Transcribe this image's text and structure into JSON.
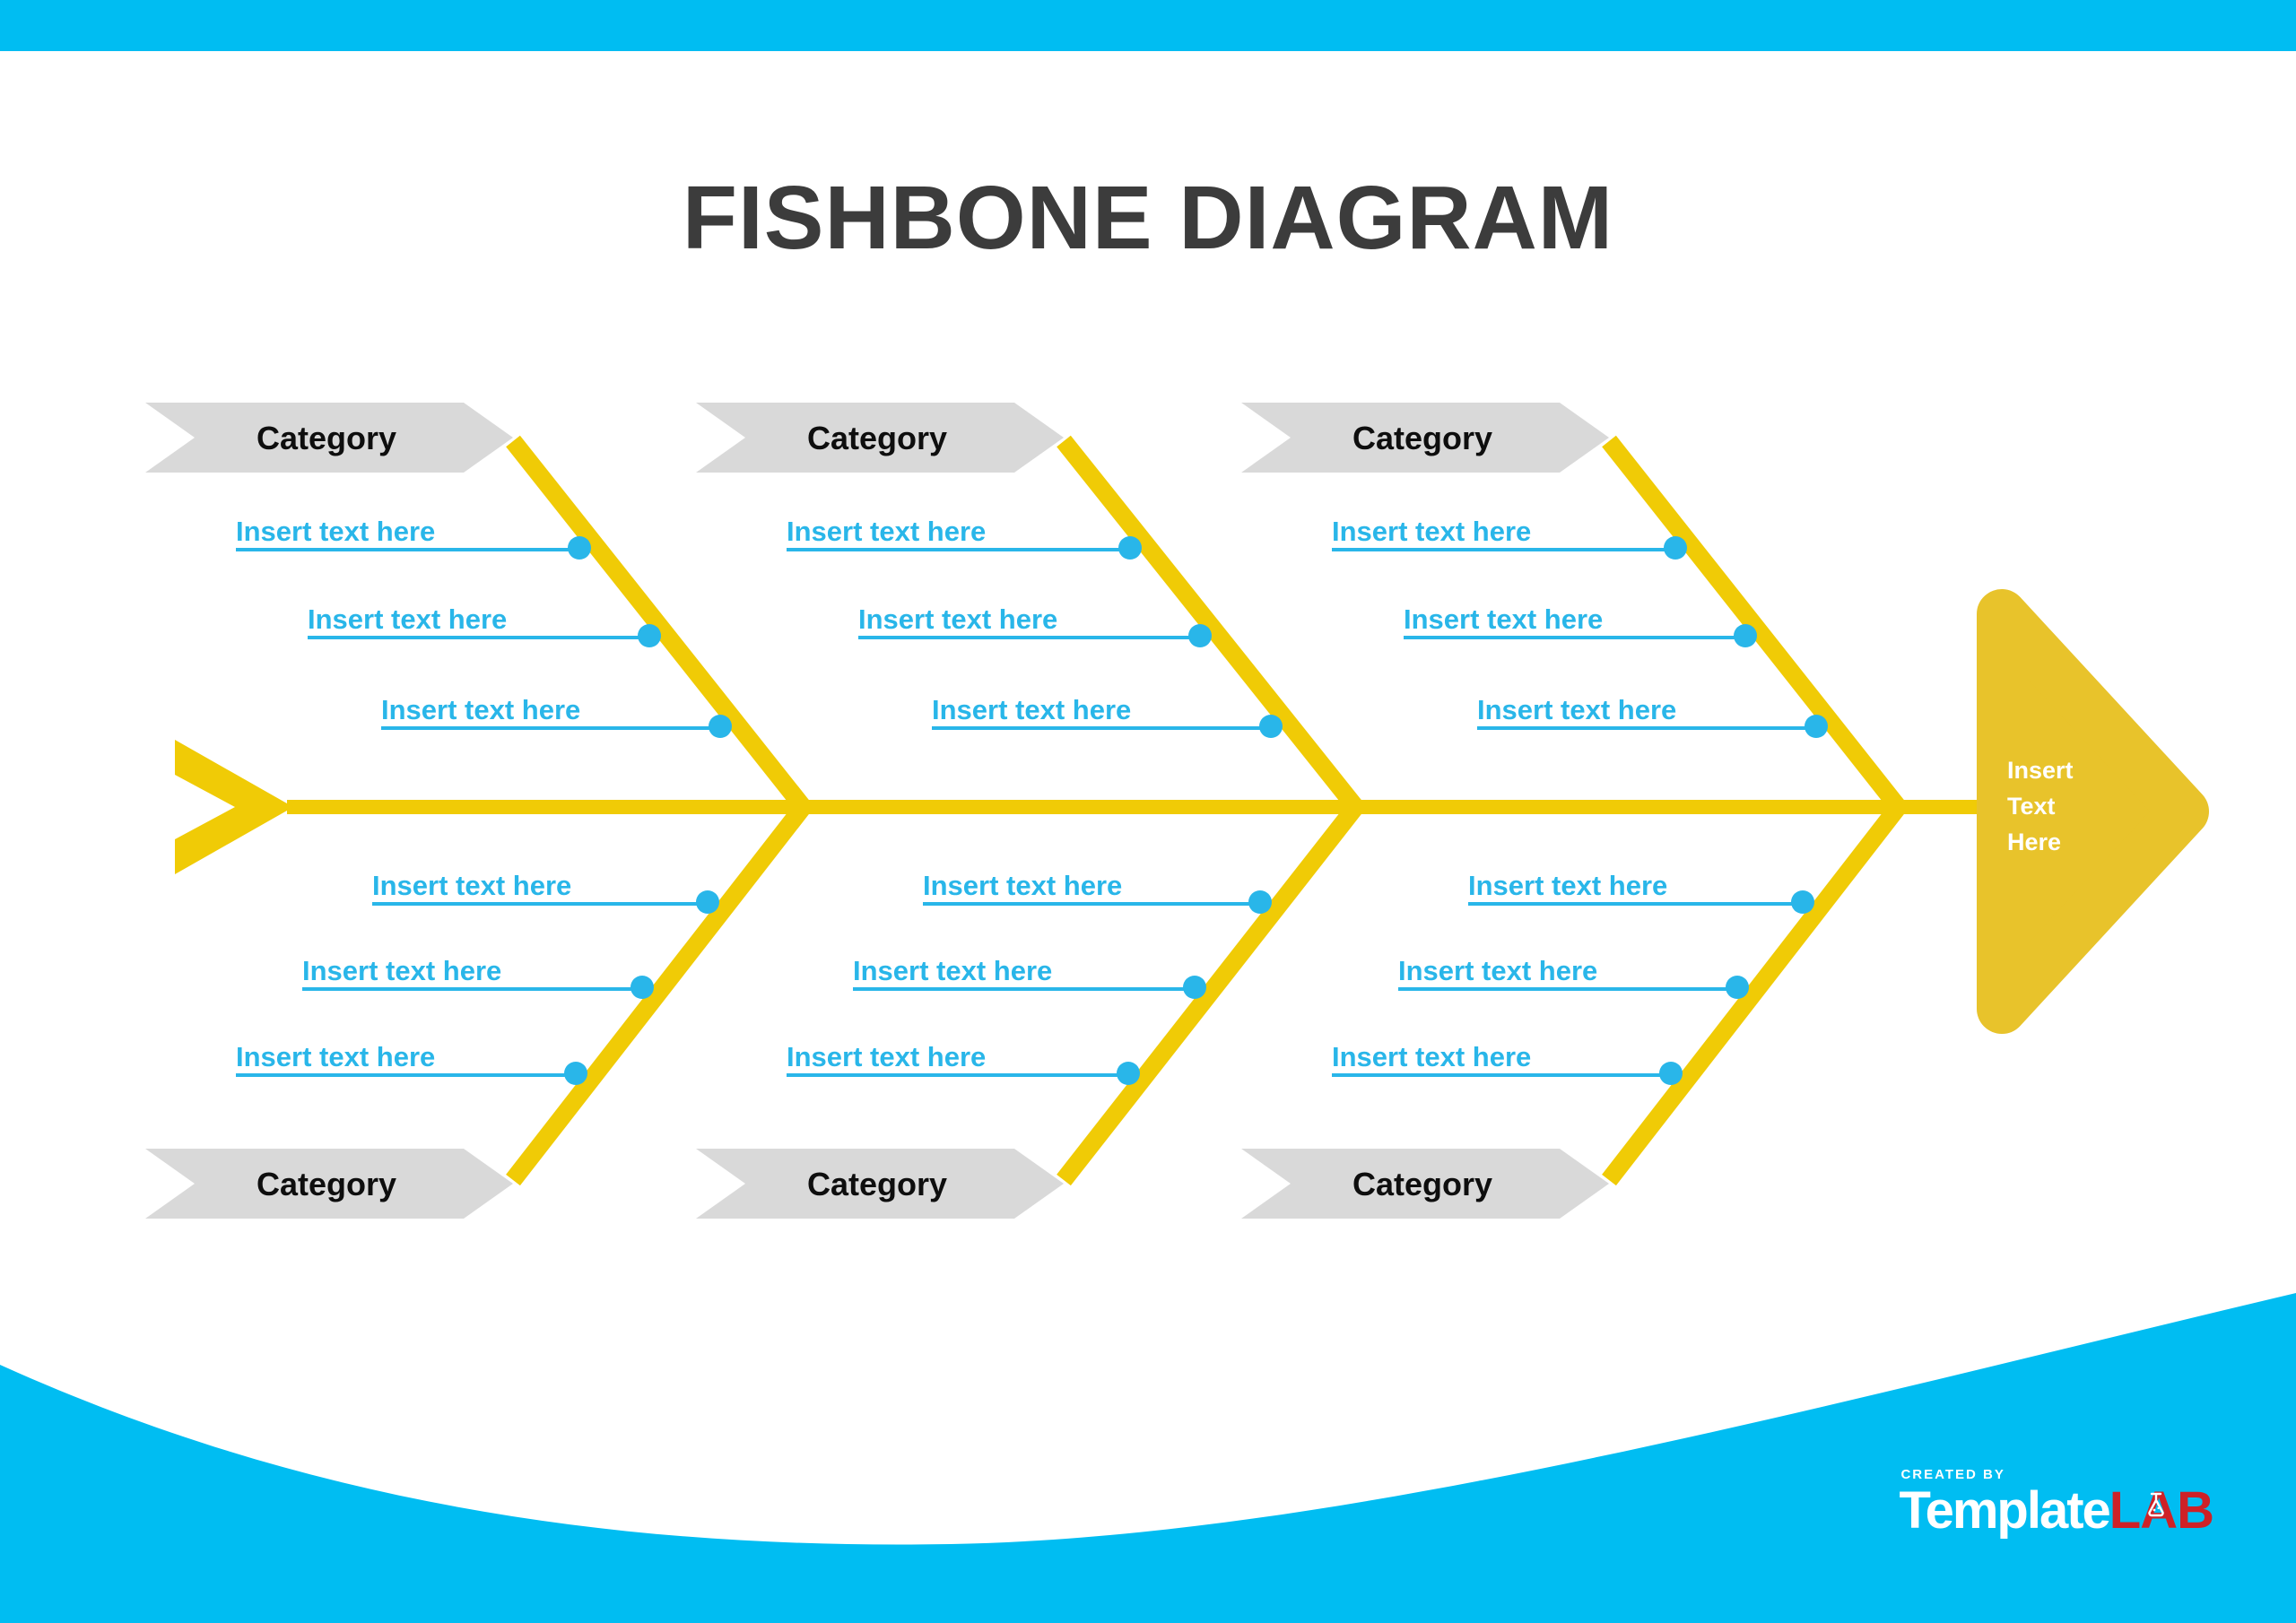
{
  "title": {
    "text": "FISHBONE DIAGRAM"
  },
  "colors": {
    "blue": "#00BDF2",
    "yellow": "#F0CB06",
    "head_yellow": "#E8C32B",
    "cyan": "#29B6E9",
    "banner_gray": "#D9D9D9",
    "banner_text": "#0E0E0E",
    "title_text": "#3C3C3C",
    "white": "#FFFFFF",
    "lab_red": "#CE2127"
  },
  "diagram": {
    "top_categories": [
      {
        "label": "Category",
        "items": [
          "Insert text here",
          "Insert text here",
          "Insert text here"
        ]
      },
      {
        "label": "Category",
        "items": [
          "Insert text here",
          "Insert text here",
          "Insert text here"
        ]
      },
      {
        "label": "Category",
        "items": [
          "Insert text here",
          "Insert text here",
          "Insert text here"
        ]
      }
    ],
    "bottom_categories": [
      {
        "label": "Category",
        "items": [
          "Insert text here",
          "Insert text here",
          "Insert text here"
        ]
      },
      {
        "label": "Category",
        "items": [
          "Insert text here",
          "Insert text here",
          "Insert text here"
        ]
      },
      {
        "label": "Category",
        "items": [
          "Insert text here",
          "Insert text here",
          "Insert text here"
        ]
      }
    ],
    "head_label_lines": [
      "Insert",
      "Text",
      "Here"
    ]
  },
  "footer": {
    "created_by": "CREATED BY",
    "brand_white": "Template",
    "brand_red": "LAB"
  }
}
